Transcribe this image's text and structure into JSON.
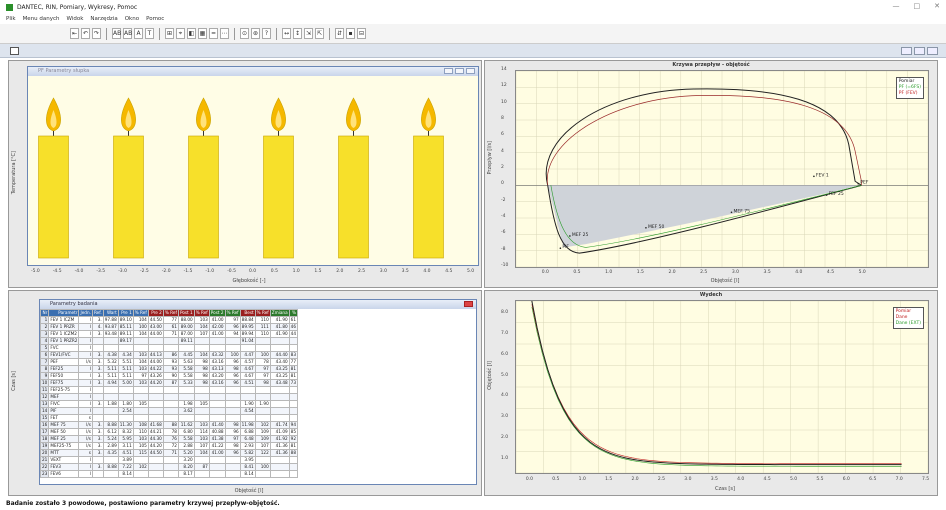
{
  "titlebar": {
    "title": "DANTEC, RIN, Pomiary, Wykresy, Pomoc"
  },
  "menu": {
    "items": [
      "Plik",
      "Menu danych",
      "Widok",
      "Narzędzia",
      "Okno",
      "Pomoc"
    ]
  },
  "toolbar": {
    "buttons": [
      "⇤",
      "↶",
      "↷",
      "AB",
      "AB",
      "A",
      "T",
      "⊞",
      "⌖",
      "◧",
      "▦",
      "━",
      "⋯",
      "⊙",
      "⊛",
      "?",
      "↔",
      "↕",
      "⇲",
      "⇱",
      "⇵",
      "▪",
      "⊟"
    ]
  },
  "candles": {
    "window_title": "PF Parametry słupka",
    "colors": {
      "flame": "#f5b800",
      "wax": "#f7e02a",
      "outline": "#c9a400"
    },
    "count": 6,
    "xlabel": "Głębokość [-]",
    "ylabel": "Temperatura [°C]",
    "xticks": [
      "-5.0",
      "-4.5",
      "-4.0",
      "-3.5",
      "-3.0",
      "-2.5",
      "-2.0",
      "-1.5",
      "-1.0",
      "-0.5",
      "0.0",
      "0.5",
      "1.0",
      "1.5",
      "2.0",
      "2.5",
      "3.0",
      "3.5",
      "4.0",
      "4.5",
      "5.0"
    ]
  },
  "curve_chart": {
    "title": "Krzywa przepływ - objętość",
    "xlabel": "Objętość [l]",
    "ylabel": "Przepływ [l/s]",
    "yticks": [
      "14",
      "12",
      "10",
      "8",
      "6",
      "4",
      "2",
      "0",
      "-2",
      "-4",
      "-6",
      "-8",
      "-10"
    ],
    "xticks": [
      "0.0",
      "0.5",
      "1.0",
      "1.5",
      "2.0",
      "2.5",
      "3.0",
      "3.5",
      "4.0",
      "4.5",
      "5.0"
    ],
    "legend": [
      {
        "name": "Pomiar",
        "color": "#000000"
      },
      {
        "name": "PF (=6FS)",
        "color": "#2a9c2a"
      },
      {
        "name": "PF (FEV)",
        "color": "#c02020"
      }
    ],
    "annotations": [
      "PEF",
      "FEV 1",
      "FEF 25",
      "MEF 75",
      "MEF 50",
      "MEF 25",
      "PIF"
    ]
  },
  "params": {
    "window_title": "Parametry badania",
    "headers": [
      "Nr",
      "Parametr",
      "Jedn.",
      "Ref.",
      "Wart",
      "Pre 1",
      "% Ref",
      "Pre 2",
      "% Ref",
      "Post 1",
      "% Ref",
      "Post 2",
      "% Ref",
      "Best",
      "% Ref",
      "Zmiana",
      "%"
    ],
    "header_colors": [
      "#3b6fb0",
      "#3b6fb0",
      "#3b6fb0",
      "#3b6fb0",
      "#3b6fb0",
      "#3b6fb0",
      "#3b6fb0",
      "#9a2020",
      "#9a2020",
      "#9a2020",
      "#9a2020",
      "#2d7a2d",
      "#2d7a2d",
      "#9a2020",
      "#9a2020",
      "#2d7a2d",
      "#2d7a2d"
    ],
    "rows": [
      [
        "1",
        "FEV 1 ICZM",
        "l",
        "3.",
        "97.88",
        "89.10",
        "104",
        "44.50",
        "77",
        "88.00",
        "103",
        "41.00",
        "97",
        "88.84",
        "110",
        "41.90",
        "61"
      ],
      [
        "2",
        "FEV 1 PRZR",
        "l",
        "4.",
        "93.87",
        "85.11",
        "100",
        "43.00",
        "61",
        "89.00",
        "104",
        "42.00",
        "96",
        "89.95",
        "111",
        "41.80",
        "46"
      ],
      [
        "3",
        "FEV 1 ICZM2",
        "l",
        "3.",
        "93.48",
        "89.11",
        "104",
        "44.00",
        "71",
        "87.00",
        "107",
        "41.00",
        "94",
        "89.94",
        "110",
        "41.90",
        "44"
      ],
      [
        "4",
        "FEV 1 PRZR2",
        "l",
        "",
        "",
        "89.17",
        "",
        "",
        "",
        "89.11",
        "",
        "",
        "",
        "91.04",
        "",
        "",
        ""
      ],
      [
        "5",
        "FVC",
        "l",
        "",
        "",
        "",
        "",
        "",
        "",
        "",
        "",
        "",
        "",
        "",
        "",
        "",
        ""
      ],
      [
        "6",
        "FEV1/FVC",
        "l",
        "3.",
        "4.38",
        "4.34",
        "103",
        "44.13",
        "86",
        "4.45",
        "104",
        "43.32",
        "100",
        "4.47",
        "100",
        "44.40",
        "83"
      ],
      [
        "7",
        "PEF",
        "l/s",
        "3.",
        "5.32",
        "5.51",
        "104",
        "44.00",
        "93",
        "5.63",
        "98",
        "43.16",
        "96",
        "4.57",
        "78",
        "43.40",
        "77"
      ],
      [
        "8",
        "FEF25",
        "l",
        "3.",
        "5.11",
        "5.11",
        "103",
        "44.22",
        "93",
        "5.58",
        "98",
        "43.13",
        "98",
        "4.67",
        "97",
        "43.25",
        "81"
      ],
      [
        "9",
        "FEF50",
        "l",
        "3.",
        "5.11",
        "5.11",
        "97",
        "43.26",
        "90",
        "5.58",
        "98",
        "43.20",
        "96",
        "4.67",
        "97",
        "43.25",
        "81"
      ],
      [
        "10",
        "FEF75",
        "l",
        "3.",
        "4.94",
        "5.00",
        "103",
        "44.20",
        "87",
        "5.33",
        "98",
        "43.16",
        "96",
        "4.51",
        "98",
        "43.48",
        "73"
      ],
      [
        "11",
        "FEF25-75",
        "l",
        "",
        "",
        "",
        "",
        "",
        "",
        "",
        "",
        "",
        "",
        "",
        "",
        "",
        ""
      ],
      [
        "12",
        "MEF",
        "l",
        "",
        "",
        "",
        "",
        "",
        "",
        "",
        "",
        "",
        "",
        "",
        "",
        "",
        ""
      ],
      [
        "13",
        "FIVC",
        "l",
        "3.",
        "1.88",
        "1.80",
        "105",
        "",
        "",
        "1.98",
        "105",
        "",
        "",
        "1.90",
        "1.90",
        "",
        ""
      ],
      [
        "14",
        "PIF",
        "l",
        "",
        "",
        "2.54",
        "",
        "",
        "",
        "3.62",
        "",
        "",
        "",
        "4.54",
        "",
        "",
        ""
      ],
      [
        "15",
        "FET",
        "s",
        "",
        "",
        "",
        "",
        "",
        "",
        "",
        "",
        "",
        "",
        "",
        "",
        "",
        ""
      ],
      [
        "16",
        "MEF 75",
        "l/s",
        "3.",
        "8.88",
        "11.30",
        "108",
        "41.68",
        "88",
        "11.62",
        "103",
        "41.40",
        "98",
        "11.98",
        "102",
        "41.74",
        "94"
      ],
      [
        "17",
        "MEF 50",
        "l/s",
        "3.",
        "6.12",
        "8.32",
        "110",
        "44.21",
        "78",
        "6.80",
        "114",
        "40.88",
        "96",
        "6.88",
        "109",
        "41.09",
        "85"
      ],
      [
        "18",
        "MEF 25",
        "l/s",
        "3.",
        "5.24",
        "5.95",
        "103",
        "44.30",
        "76",
        "5.58",
        "103",
        "41.38",
        "97",
        "6.48",
        "109",
        "41.92",
        "92"
      ],
      [
        "19",
        "MEF25-75",
        "l/s",
        "3.",
        "2.89",
        "3.11",
        "105",
        "44.20",
        "72",
        "2.88",
        "107",
        "41.22",
        "98",
        "2.93",
        "107",
        "41.36",
        "81"
      ],
      [
        "20",
        "MTT",
        "s",
        "3.",
        "4.35",
        "4.51",
        "115",
        "44.50",
        "71",
        "5.20",
        "104",
        "41.00",
        "96",
        "5.82",
        "122",
        "41.36",
        "88"
      ],
      [
        "21",
        "VEXT",
        "l",
        "",
        "",
        "3.89",
        "",
        "",
        "",
        "3.20",
        "",
        "",
        "",
        "3.95",
        "",
        "",
        ""
      ],
      [
        "22",
        "FEV3",
        "l",
        "3.",
        "8.88",
        "7.22",
        "102",
        "",
        "",
        "8.20",
        "87",
        "",
        "",
        "8.41",
        "100",
        "",
        ""
      ],
      [
        "23",
        "FEV6",
        "l",
        "",
        "",
        "8.14",
        "",
        "",
        "",
        "8.17",
        "",
        "",
        "",
        "8.14",
        "",
        "",
        ""
      ]
    ],
    "xlabel": "Objętość [l]",
    "ylabel": "Czas [s]"
  },
  "volume_chart": {
    "title": "Wydech",
    "xlabel": "Czas [s]",
    "ylabel": "Objętość [l]",
    "yticks": [
      "8.0",
      "7.0",
      "6.0",
      "5.0",
      "4.0",
      "3.0",
      "2.0",
      "1.0"
    ],
    "xticks": [
      "0.0",
      "0.5",
      "1.0",
      "1.5",
      "2.0",
      "2.5",
      "3.0",
      "3.5",
      "4.0",
      "4.5",
      "5.0",
      "5.5",
      "6.0",
      "6.5",
      "7.0",
      "7.5"
    ],
    "legend": [
      {
        "name": "Pomiar",
        "color": "#000000"
      },
      {
        "name": "Dane",
        "color": "#c02020"
      },
      {
        "name": "Dane (EXT)",
        "color": "#2a9c2a"
      }
    ]
  },
  "status": {
    "text": "Badanie zostało 3 powodowe, postawiono parametry krzywej przepływ-objętość."
  }
}
